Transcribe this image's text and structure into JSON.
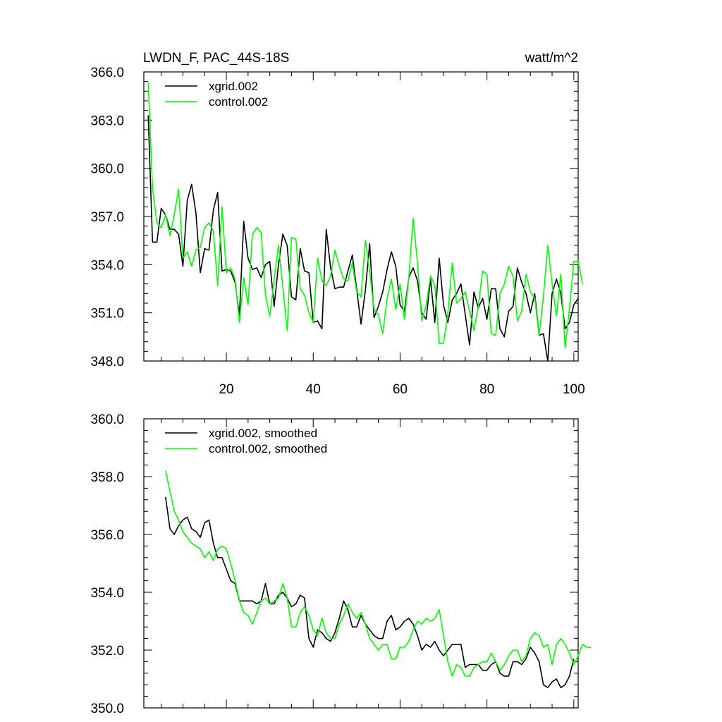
{
  "chart_data": [
    {
      "type": "line",
      "title": "LWDN_F, PAC_44S-18S",
      "units": "watt/m^2",
      "xlim": [
        1,
        101
      ],
      "ylim": [
        348,
        366
      ],
      "x_ticks": [
        20,
        40,
        60,
        80,
        100
      ],
      "y_ticks": [
        348,
        351,
        354,
        357,
        360,
        363,
        366
      ],
      "y_tick_labels": [
        "348.0",
        "351.0",
        "354.0",
        "357.0",
        "360.0",
        "363.0",
        "366.0"
      ],
      "x_tick_labels": [
        "20",
        "40",
        "60",
        "80",
        "100"
      ],
      "legend_position": "top-left",
      "x_start": 2,
      "series": [
        {
          "name": "xgrid.002",
          "color": "#000000",
          "values": [
            363.3,
            355.4,
            355.4,
            357.5,
            357.1,
            356.2,
            356.2,
            355.9,
            353.9,
            358.0,
            359.0,
            357.2,
            353.5,
            355.0,
            354.9,
            357.4,
            358.5,
            353.6,
            353.7,
            353.6,
            352.9,
            350.8,
            356.7,
            354.4,
            353.7,
            353.8,
            353.2,
            354.0,
            354.2,
            351.4,
            354.0,
            355.9,
            355.2,
            352.0,
            351.8,
            355.0,
            353.6,
            353.5,
            350.4,
            350.5,
            350.0,
            356.2,
            353.8,
            352.5,
            352.6,
            352.6,
            353.6,
            354.6,
            352.5,
            350.3,
            352.4,
            355.3,
            350.7,
            351.4,
            352.3,
            353.7,
            354.8,
            353.9,
            351.5,
            351.1,
            353.2,
            353.8,
            353.0,
            351.0,
            350.6,
            353.1,
            350.4,
            354.4,
            351.5,
            350.4,
            351.8,
            352.2,
            352.8,
            350.9,
            349.0,
            352.3,
            351.3,
            351.9,
            350.6,
            352.5,
            352.5,
            350.0,
            349.5,
            351.1,
            351.4,
            353.8,
            352.9,
            352.2,
            351.0,
            352.2,
            349.6,
            349.7,
            348.0,
            352.2,
            353.1,
            352.2,
            350.0,
            350.4,
            351.5,
            351.9
          ]
        },
        {
          "name": "control.002",
          "color": "#00ff00",
          "values": [
            365.3,
            358.8,
            356.6,
            356.3,
            357.1,
            355.8,
            357.1,
            358.7,
            354.4,
            354.8,
            353.9,
            354.9,
            355.1,
            356.3,
            356.6,
            356.1,
            352.7,
            357.6,
            353.5,
            353.8,
            353.1,
            350.4,
            353.2,
            351.5,
            355.9,
            356.3,
            356.0,
            352.1,
            350.8,
            353.1,
            355.2,
            352.6,
            349.9,
            355.7,
            355.6,
            352.5,
            352.1,
            351.0,
            350.4,
            354.4,
            353.0,
            352.7,
            353.3,
            354.9,
            353.9,
            353.1,
            353.0,
            354.1,
            352.3,
            352.0,
            355.5,
            353.6,
            351.2,
            350.9,
            349.7,
            351.9,
            353.1,
            351.2,
            352.8,
            350.6,
            353.2,
            356.9,
            354.1,
            350.5,
            351.5,
            353.3,
            352.7,
            349.1,
            349.1,
            351.0,
            354.1,
            351.6,
            351.9,
            352.3,
            351.1,
            349.9,
            351.4,
            353.6,
            353.4,
            349.7,
            349.6,
            352.2,
            352.8,
            353.9,
            353.3,
            350.5,
            351.1,
            353.4,
            352.3,
            351.9,
            349.6,
            352.0,
            355.2,
            352.8,
            350.8,
            353.4,
            348.8,
            351.3,
            354.2,
            354.2,
            352.8
          ]
        }
      ]
    },
    {
      "type": "line",
      "xlim": [
        1,
        101
      ],
      "ylim": [
        350,
        360
      ],
      "x_ticks": [
        20,
        40,
        60,
        80,
        100
      ],
      "y_ticks": [
        350,
        352,
        354,
        356,
        358,
        360
      ],
      "y_tick_labels": [
        "350.0",
        "352.0",
        "354.0",
        "356.0",
        "358.0",
        "360.0"
      ],
      "legend_position": "top-left",
      "x_start": 6,
      "series": [
        {
          "name": "xgrid.002, smoothed",
          "color": "#000000",
          "values": [
            357.3,
            356.2,
            356.0,
            356.3,
            356.5,
            356.6,
            356.2,
            356.1,
            355.9,
            356.4,
            356.5,
            355.7,
            355.2,
            355.2,
            354.8,
            354.4,
            354.3,
            353.7,
            353.7,
            353.7,
            353.7,
            353.6,
            353.7,
            354.3,
            353.6,
            353.6,
            353.9,
            354.0,
            353.8,
            353.5,
            353.6,
            353.9,
            353.8,
            352.4,
            352.1,
            352.7,
            352.6,
            352.4,
            352.3,
            352.6,
            353.1,
            353.7,
            353.4,
            352.8,
            352.8,
            353.2,
            352.9,
            352.7,
            352.5,
            352.4,
            352.4,
            353.0,
            353.2,
            352.7,
            352.8,
            353.0,
            353.1,
            352.9,
            352.5,
            352.0,
            352.2,
            352.1,
            352.3,
            352.0,
            351.8,
            352.0,
            352.2,
            352.2,
            352.2,
            351.4,
            351.5,
            351.5,
            351.5,
            351.3,
            351.3,
            351.5,
            351.6,
            351.2,
            351.1,
            351.1,
            351.6,
            351.6,
            351.5,
            351.7,
            352.1,
            351.9,
            351.6,
            350.8,
            350.7,
            350.9,
            351.0,
            350.7,
            350.8,
            351.1,
            351.7
          ]
        },
        {
          "name": "control.002, smoothed",
          "color": "#00ff00",
          "values": [
            358.2,
            357.5,
            356.8,
            356.5,
            356.1,
            355.9,
            355.7,
            355.6,
            355.5,
            355.2,
            355.4,
            355.1,
            355.5,
            355.6,
            355.5,
            355.0,
            354.4,
            353.7,
            353.3,
            353.2,
            352.9,
            353.3,
            353.7,
            353.8,
            353.6,
            353.7,
            353.8,
            354.3,
            353.8,
            352.8,
            352.8,
            353.3,
            353.5,
            353.2,
            352.7,
            352.5,
            353.1,
            352.6,
            352.4,
            352.4,
            352.9,
            353.2,
            353.6,
            353.3,
            353.1,
            353.3,
            352.9,
            352.4,
            352.2,
            352.0,
            352.2,
            352.2,
            351.7,
            351.7,
            352.1,
            352.1,
            352.3,
            352.7,
            353.0,
            352.9,
            353.1,
            353.0,
            353.1,
            353.4,
            352.5,
            351.6,
            351.1,
            351.5,
            351.4,
            351.1,
            351.1,
            351.4,
            351.5,
            351.6,
            351.6,
            351.9,
            351.6,
            351.3,
            351.5,
            351.8,
            352.0,
            352.0,
            351.6,
            351.8,
            352.4,
            352.6,
            352.5,
            352.1,
            352.2,
            351.5,
            352.2,
            352.4,
            352.2,
            351.9,
            351.5,
            351.8,
            352.2,
            352.1,
            352.1
          ]
        }
      ]
    }
  ]
}
